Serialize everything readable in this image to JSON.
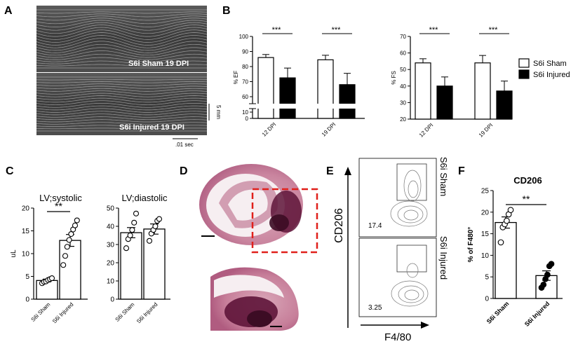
{
  "panels": {
    "a": "A",
    "b": "B",
    "c": "C",
    "d": "D",
    "e": "E",
    "f": "F"
  },
  "echo": {
    "top_label": "S6i Sham  19 DPI",
    "bottom_label": "S6i Injured  19 DPI",
    "scale_v": "5 mm",
    "scale_h": ".01 sec"
  },
  "legend": {
    "sham": "S6i Sham",
    "injured": "S6i Injured",
    "sham_color": "#ffffff",
    "injured_color": "#000000"
  },
  "flow": {
    "y_axis": "CD206",
    "x_axis": "F4/80",
    "top_group": "S6i Sham",
    "top_pct": "17.4",
    "bottom_group": "S6i Injured",
    "bottom_pct": "3.25"
  },
  "histology": {
    "box_color": "#e0201b"
  },
  "chart_data": [
    {
      "id": "ef",
      "type": "bar",
      "title": "",
      "categories": [
        "12 DPI",
        "19 DPI"
      ],
      "ylabel": "% EF",
      "ylim": [
        0,
        100
      ],
      "axis_break": [
        10,
        15
      ],
      "yticks": [
        "0",
        "10",
        "60",
        "70",
        "80",
        "90",
        "100"
      ],
      "series": [
        {
          "name": "S6i Sham",
          "values": [
            86,
            84.5
          ],
          "errors": [
            2,
            3
          ]
        },
        {
          "name": "S6i Injured",
          "values": [
            72.5,
            68
          ],
          "errors": [
            6.5,
            7.5
          ]
        }
      ],
      "annotations": [
        "***",
        "***"
      ]
    },
    {
      "id": "fs",
      "type": "bar",
      "title": "",
      "categories": [
        "12 DPI",
        "19 DPI"
      ],
      "ylabel": "% FS",
      "ylim": [
        20,
        70
      ],
      "yticks": [
        "20",
        "30",
        "40",
        "50",
        "60",
        "70"
      ],
      "series": [
        {
          "name": "S6i Sham",
          "values": [
            54,
            54
          ],
          "errors": [
            2.5,
            4.5
          ]
        },
        {
          "name": "S6i Injured",
          "values": [
            40,
            37
          ],
          "errors": [
            5.5,
            6
          ]
        }
      ],
      "annotations": [
        "***",
        "***"
      ]
    },
    {
      "id": "systolic",
      "type": "bar",
      "title": "LV;systolic",
      "categories": [
        "S6i Sham",
        "S6i Injured"
      ],
      "ylabel": "uL",
      "ylim": [
        0,
        20
      ],
      "yticks": [
        "0",
        "5",
        "10",
        "15",
        "20"
      ],
      "values": [
        4.1,
        12.9
      ],
      "errors": [
        0.3,
        1.3
      ],
      "points": [
        [
          3.5,
          3.8,
          3.9,
          4.2,
          4.4,
          4.6
        ],
        [
          7.5,
          9.5,
          11.5,
          13,
          14.3,
          15.3,
          16.2,
          17.3
        ]
      ],
      "annotations": [
        "**"
      ]
    },
    {
      "id": "diastolic",
      "type": "bar",
      "title": "LV;diastolic",
      "categories": [
        "S6i Sham",
        "S6i Injured"
      ],
      "ylabel": "",
      "ylim": [
        0,
        50
      ],
      "yticks": [
        "0",
        "10",
        "20",
        "30",
        "40",
        "50"
      ],
      "values": [
        36.5,
        38.5
      ],
      "errors": [
        2.8,
        2.8
      ],
      "points": [
        [
          28,
          33,
          35,
          38,
          42,
          47
        ],
        [
          32,
          36,
          38,
          40,
          43,
          44
        ]
      ],
      "annotations": []
    },
    {
      "id": "cd206",
      "type": "bar",
      "title": "CD206",
      "categories": [
        "S6i Sham",
        "S6i Injured"
      ],
      "ylabel": "% of F480",
      "ylabel_sup": "+",
      "ylim": [
        0,
        25
      ],
      "yticks": [
        "0",
        "5",
        "10",
        "15",
        "20",
        "25"
      ],
      "values": [
        17.6,
        5.3
      ],
      "errors": [
        1.3,
        1.1
      ],
      "points": [
        [
          13,
          16.5,
          17.2,
          18,
          19.5,
          20.5
        ],
        [
          2.5,
          3.2,
          4.5,
          5.5,
          7.5,
          8
        ]
      ],
      "annotations": [
        "**"
      ]
    }
  ]
}
